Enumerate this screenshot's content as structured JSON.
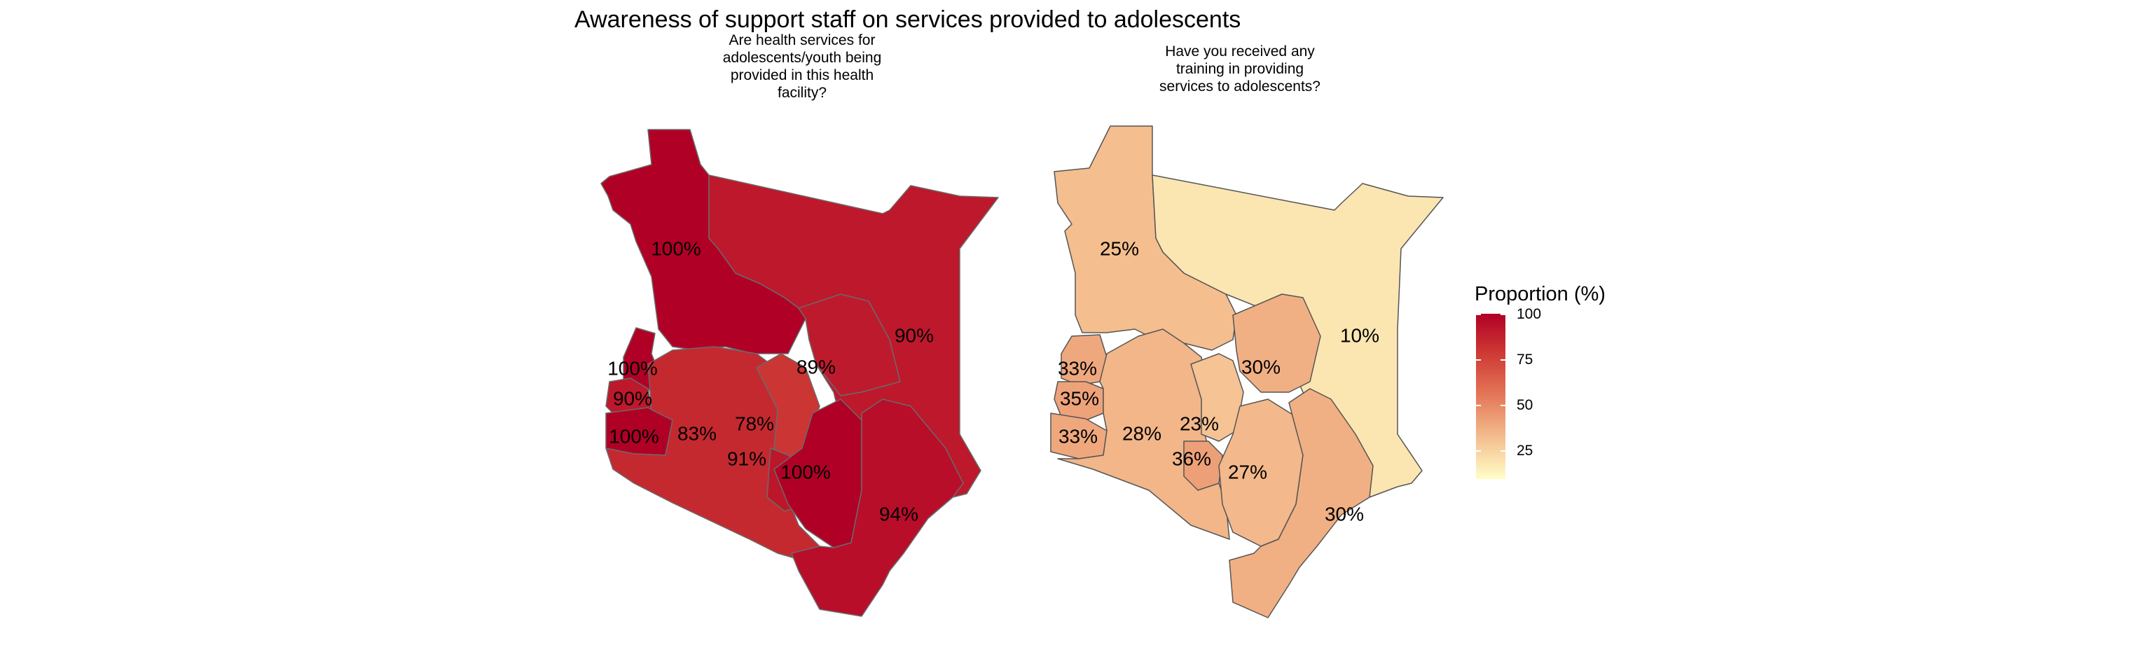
{
  "title": "Awareness of support staff on services provided to adolescents",
  "panels": [
    {
      "subtitle": "Are health services for\nadolescents/youth being\nprovided in this health\nfacility?",
      "regions": [
        {
          "label": "100%",
          "value": 100
        },
        {
          "label": "90%",
          "value": 90
        },
        {
          "label": "89%",
          "value": 89
        },
        {
          "label": "100%",
          "value": 100
        },
        {
          "label": "90%",
          "value": 90
        },
        {
          "label": "100%",
          "value": 100
        },
        {
          "label": "83%",
          "value": 83
        },
        {
          "label": "78%",
          "value": 78
        },
        {
          "label": "91%",
          "value": 91
        },
        {
          "label": "100%",
          "value": 100
        },
        {
          "label": "94%",
          "value": 94
        }
      ]
    },
    {
      "subtitle": "Have you received any\ntraining in providing\nservices to adolescents?",
      "regions": [
        {
          "label": "25%",
          "value": 25
        },
        {
          "label": "10%",
          "value": 10
        },
        {
          "label": "30%",
          "value": 30
        },
        {
          "label": "33%",
          "value": 33
        },
        {
          "label": "35%",
          "value": 35
        },
        {
          "label": "33%",
          "value": 33
        },
        {
          "label": "28%",
          "value": 28
        },
        {
          "label": "23%",
          "value": 23
        },
        {
          "label": "36%",
          "value": 36
        },
        {
          "label": "27%",
          "value": 27
        },
        {
          "label": "30%",
          "value": 30
        }
      ]
    }
  ],
  "legend": {
    "title": "Proportion (%)",
    "ticks": [
      "100",
      "75",
      "50",
      "25"
    ],
    "colors": {
      "high": "#b10026",
      "mid_high": "#cf3c35",
      "mid": "#e4795a",
      "mid_low": "#f4be8f",
      "low": "#ffffc8"
    }
  }
}
